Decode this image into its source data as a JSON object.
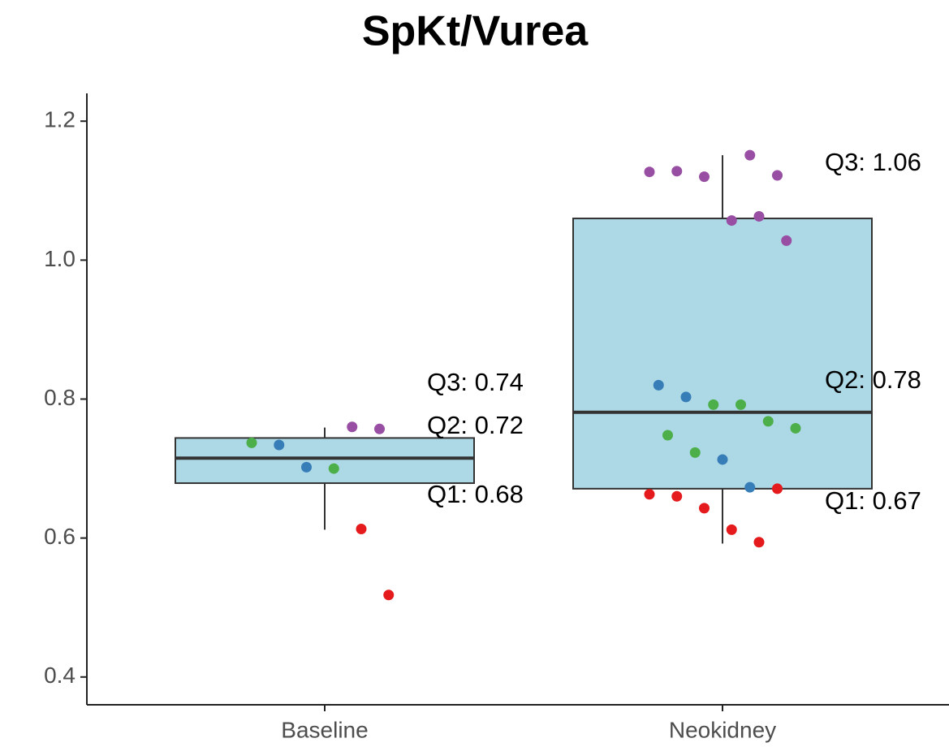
{
  "chart_data": {
    "type": "box",
    "title": "SpKt/Vurea",
    "categories": [
      "Baseline",
      "Neokidney"
    ],
    "box_color": "#add8e6",
    "q1": [
      0.679,
      0.671
    ],
    "median": [
      0.715,
      0.781
    ],
    "q3": [
      0.744,
      1.06
    ],
    "whisker_low": [
      0.612,
      0.592
    ],
    "whisker_high": [
      0.759,
      1.151
    ],
    "points": [
      {
        "values": [
          0.76,
          0.757,
          0.737,
          0.734,
          0.702,
          0.7,
          0.613,
          0.518
        ],
        "colors": [
          "#984ea3",
          "#984ea3",
          "#4daf4a",
          "#377eb8",
          "#377eb8",
          "#4daf4a",
          "#e41a1c",
          "#e41a1c"
        ]
      },
      {
        "values": [
          1.151,
          1.122,
          1.127,
          1.128,
          1.12,
          1.057,
          1.063,
          1.028,
          0.82,
          0.803,
          0.792,
          0.792,
          0.768,
          0.758,
          0.748,
          0.723,
          0.713,
          0.673,
          0.671,
          0.663,
          0.66,
          0.643,
          0.612,
          0.594
        ],
        "colors": [
          "#984ea3",
          "#984ea3",
          "#984ea3",
          "#984ea3",
          "#984ea3",
          "#984ea3",
          "#984ea3",
          "#984ea3",
          "#377eb8",
          "#377eb8",
          "#4daf4a",
          "#4daf4a",
          "#4daf4a",
          "#4daf4a",
          "#4daf4a",
          "#4daf4a",
          "#377eb8",
          "#377eb8",
          "#e41a1c",
          "#e41a1c",
          "#e41a1c",
          "#e41a1c",
          "#e41a1c",
          "#e41a1c"
        ]
      }
    ],
    "annotations": [
      [
        "Q3: 0.74",
        "Q2: 0.72",
        "Q1: 0.68"
      ],
      [
        "Q3: 1.06",
        "Q2: 0.78",
        "Q1: 0.67"
      ]
    ],
    "ylim": [
      0.36,
      1.24
    ],
    "yticks": [
      0.4,
      0.6,
      0.8,
      {
        "value": 1.0,
        "label": "1.0"
      },
      1.2
    ]
  }
}
